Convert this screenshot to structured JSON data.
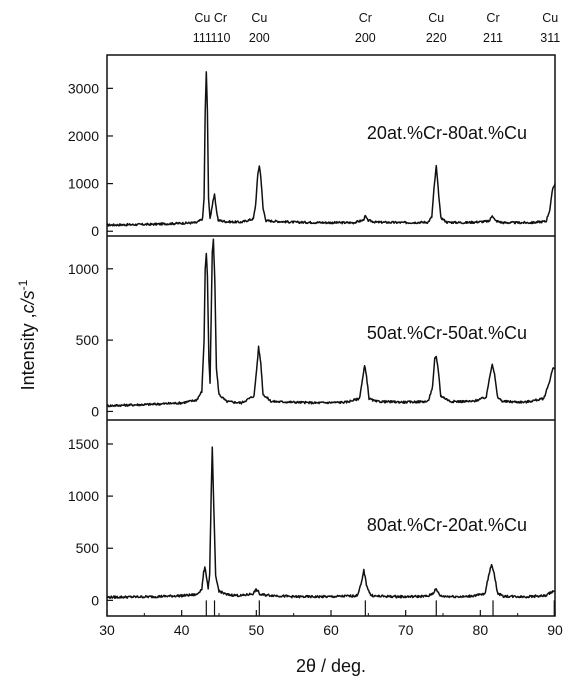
{
  "chart_data": {
    "type": "line",
    "xlabel": "2θ / deg.",
    "ylabel_main": "Intensity ,",
    "ylabel_italic": "c/s",
    "ylabel_sup": "-1",
    "xlim": [
      30,
      90
    ],
    "x_ticks": [
      30,
      40,
      50,
      60,
      70,
      80,
      90
    ],
    "grid": false,
    "peak_markers": [
      {
        "element": "Cu",
        "hkl": "111",
        "x": 43.3
      },
      {
        "element": "Cr",
        "hkl": "110",
        "x": 44.4
      },
      {
        "element": "Cu",
        "hkl": "200",
        "x": 50.4
      },
      {
        "element": "Cr",
        "hkl": "200",
        "x": 64.6
      },
      {
        "element": "Cu",
        "hkl": "220",
        "x": 74.1
      },
      {
        "element": "Cr",
        "hkl": "211",
        "x": 81.7
      },
      {
        "element": "Cu",
        "hkl": "311",
        "x": 89.9
      }
    ],
    "panels": [
      {
        "name": "20at.%Cr-80at.%Cu",
        "ylim": [
          -100,
          3700
        ],
        "y_ticks": [
          0,
          1000,
          2000,
          3000
        ],
        "baseline": 130,
        "points": [
          [
            30,
            130
          ],
          [
            36,
            145
          ],
          [
            42,
            180
          ],
          [
            42.8,
            260
          ],
          [
            43.0,
            700
          ],
          [
            43.15,
            2500
          ],
          [
            43.3,
            3350
          ],
          [
            43.45,
            2500
          ],
          [
            43.6,
            700
          ],
          [
            43.8,
            250
          ],
          [
            44.0,
            450
          ],
          [
            44.2,
            650
          ],
          [
            44.4,
            760
          ],
          [
            44.6,
            500
          ],
          [
            44.9,
            230
          ],
          [
            46,
            200
          ],
          [
            48,
            190
          ],
          [
            49.6,
            260
          ],
          [
            49.9,
            550
          ],
          [
            50.2,
            1200
          ],
          [
            50.4,
            1380
          ],
          [
            50.6,
            1150
          ],
          [
            50.9,
            480
          ],
          [
            51.3,
            220
          ],
          [
            55,
            190
          ],
          [
            60,
            180
          ],
          [
            63,
            180
          ],
          [
            64.3,
            230
          ],
          [
            64.6,
            320
          ],
          [
            64.9,
            230
          ],
          [
            66,
            190
          ],
          [
            70,
            180
          ],
          [
            73,
            190
          ],
          [
            73.5,
            300
          ],
          [
            73.8,
            900
          ],
          [
            74.1,
            1370
          ],
          [
            74.35,
            900
          ],
          [
            74.7,
            290
          ],
          [
            75.5,
            190
          ],
          [
            78,
            180
          ],
          [
            81.2,
            210
          ],
          [
            81.6,
            340
          ],
          [
            82.0,
            220
          ],
          [
            83,
            180
          ],
          [
            87,
            180
          ],
          [
            88.8,
            210
          ],
          [
            89.3,
            450
          ],
          [
            89.7,
            900
          ],
          [
            90,
            1000
          ]
        ]
      },
      {
        "name": "50at.%Cr-50at.%Cu",
        "ylim": [
          -60,
          1230
        ],
        "y_ticks": [
          0,
          500,
          1000
        ],
        "baseline": 40,
        "points": [
          [
            30,
            40
          ],
          [
            36,
            50
          ],
          [
            40,
            60
          ],
          [
            42,
            80
          ],
          [
            42.7,
            140
          ],
          [
            43.0,
            500
          ],
          [
            43.15,
            1000
          ],
          [
            43.3,
            1110
          ],
          [
            43.45,
            950
          ],
          [
            43.65,
            350
          ],
          [
            43.8,
            200
          ],
          [
            43.95,
            650
          ],
          [
            44.1,
            1120
          ],
          [
            44.25,
            1200
          ],
          [
            44.45,
            900
          ],
          [
            44.65,
            300
          ],
          [
            45,
            120
          ],
          [
            46,
            70
          ],
          [
            48,
            60
          ],
          [
            49.7,
            110
          ],
          [
            50.1,
            330
          ],
          [
            50.3,
            450
          ],
          [
            50.6,
            340
          ],
          [
            50.9,
            120
          ],
          [
            52,
            70
          ],
          [
            55,
            65
          ],
          [
            58,
            60
          ],
          [
            62,
            65
          ],
          [
            63.8,
            90
          ],
          [
            64.3,
            250
          ],
          [
            64.5,
            320
          ],
          [
            64.75,
            250
          ],
          [
            65.1,
            90
          ],
          [
            66,
            70
          ],
          [
            70,
            65
          ],
          [
            73,
            70
          ],
          [
            73.6,
            170
          ],
          [
            73.9,
            370
          ],
          [
            74.1,
            385
          ],
          [
            74.35,
            300
          ],
          [
            74.7,
            110
          ],
          [
            76,
            70
          ],
          [
            79,
            70
          ],
          [
            80.8,
            100
          ],
          [
            81.3,
            260
          ],
          [
            81.6,
            335
          ],
          [
            81.9,
            260
          ],
          [
            82.3,
            100
          ],
          [
            83,
            70
          ],
          [
            86,
            65
          ],
          [
            88.5,
            90
          ],
          [
            89.2,
            200
          ],
          [
            89.7,
            300
          ],
          [
            90,
            300
          ]
        ]
      },
      {
        "name": "80at.%Cr-20at.%Cu",
        "ylim": [
          -150,
          1730
        ],
        "y_ticks": [
          0,
          500,
          1000,
          1500
        ],
        "baseline": 30,
        "points": [
          [
            30,
            30
          ],
          [
            36,
            35
          ],
          [
            40,
            45
          ],
          [
            42,
            55
          ],
          [
            42.7,
            110
          ],
          [
            42.95,
            270
          ],
          [
            43.1,
            310
          ],
          [
            43.3,
            240
          ],
          [
            43.55,
            120
          ],
          [
            43.75,
            250
          ],
          [
            43.95,
            1000
          ],
          [
            44.1,
            1460
          ],
          [
            44.3,
            900
          ],
          [
            44.55,
            230
          ],
          [
            45,
            90
          ],
          [
            46,
            55
          ],
          [
            48,
            45
          ],
          [
            49.6,
            65
          ],
          [
            49.9,
            100
          ],
          [
            50.15,
            95
          ],
          [
            50.5,
            55
          ],
          [
            55,
            35
          ],
          [
            60,
            35
          ],
          [
            63.5,
            45
          ],
          [
            64.1,
            170
          ],
          [
            64.4,
            290
          ],
          [
            64.75,
            150
          ],
          [
            65.3,
            50
          ],
          [
            66,
            40
          ],
          [
            70,
            35
          ],
          [
            73,
            40
          ],
          [
            73.7,
            70
          ],
          [
            74.0,
            110
          ],
          [
            74.3,
            80
          ],
          [
            74.7,
            40
          ],
          [
            78,
            35
          ],
          [
            80.6,
            60
          ],
          [
            81.1,
            230
          ],
          [
            81.5,
            350
          ],
          [
            81.85,
            260
          ],
          [
            82.3,
            70
          ],
          [
            83,
            40
          ],
          [
            86,
            35
          ],
          [
            88.8,
            45
          ],
          [
            89.5,
            80
          ],
          [
            90,
            90
          ]
        ]
      }
    ]
  }
}
